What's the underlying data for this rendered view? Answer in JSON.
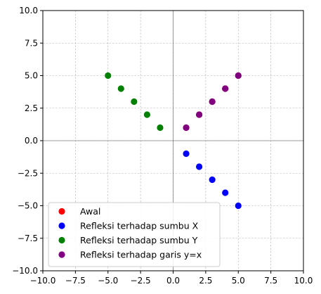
{
  "chart_data": {
    "type": "scatter",
    "xlim": [
      -10,
      10
    ],
    "ylim": [
      -10,
      10
    ],
    "x_ticks": [
      -10,
      -7.5,
      -5,
      -2.5,
      0,
      2.5,
      5,
      7.5,
      10
    ],
    "y_ticks": [
      -10,
      -7.5,
      -5,
      -2.5,
      0,
      2.5,
      5,
      7.5,
      10
    ],
    "x_tick_labels": [
      "−10.0",
      "−7.5",
      "−5.0",
      "−2.5",
      "0.0",
      "2.5",
      "5.0",
      "7.5",
      "10.0"
    ],
    "y_tick_labels": [
      "−10.0",
      "−7.5",
      "−5.0",
      "−2.5",
      "0.0",
      "2.5",
      "5.0",
      "7.5",
      "10.0"
    ],
    "grid": true,
    "axis_lines_at_zero": true,
    "legend_position": "lower-left",
    "series": [
      {
        "name": "Awal",
        "color": "#ff0000",
        "points": [
          [
            1,
            1
          ],
          [
            2,
            2
          ],
          [
            3,
            3
          ],
          [
            4,
            4
          ],
          [
            5,
            5
          ]
        ]
      },
      {
        "name": "Refleksi terhadap sumbu X",
        "color": "#0000ff",
        "points": [
          [
            1,
            -1
          ],
          [
            2,
            -2
          ],
          [
            3,
            -3
          ],
          [
            4,
            -4
          ],
          [
            5,
            -5
          ]
        ]
      },
      {
        "name": "Refleksi terhadap sumbu Y",
        "color": "#008000",
        "points": [
          [
            -1,
            1
          ],
          [
            -2,
            2
          ],
          [
            -3,
            3
          ],
          [
            -4,
            4
          ],
          [
            -5,
            5
          ]
        ]
      },
      {
        "name": "Refleksi terhadap garis y=x",
        "color": "#800080",
        "points": [
          [
            1,
            1
          ],
          [
            2,
            2
          ],
          [
            3,
            3
          ],
          [
            4,
            4
          ],
          [
            5,
            5
          ]
        ]
      }
    ]
  }
}
